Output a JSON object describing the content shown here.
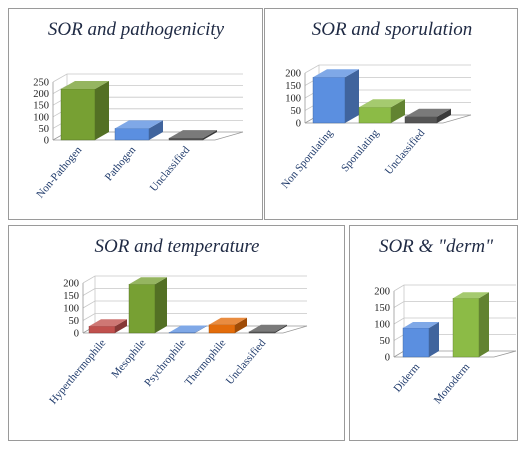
{
  "chart_data": [
    {
      "type": "bar",
      "title": "SOR and pathogenicity",
      "categories": [
        "Non-Pathogen",
        "Pathogen",
        "Unclassified"
      ],
      "values": [
        220,
        50,
        8
      ],
      "colors": [
        "#77a033",
        "#5b8fe0",
        "#555555"
      ],
      "ylim": [
        0,
        250
      ],
      "yticks": [
        0,
        50,
        100,
        150,
        200,
        250
      ],
      "grid": true
    },
    {
      "type": "bar",
      "title": "SOR and sporulation",
      "categories": [
        "Non Sporulating",
        "Sporulating",
        "Unclassified"
      ],
      "values": [
        183,
        63,
        25
      ],
      "colors": [
        "#5b8fe0",
        "#8cbb46",
        "#555555"
      ],
      "ylim": [
        0,
        200
      ],
      "yticks": [
        0,
        50,
        100,
        150,
        200
      ],
      "grid": true
    },
    {
      "type": "bar",
      "title": "SOR and temperature",
      "categories": [
        "Hyperthermophile",
        "Mesophile",
        "Psychrophile",
        "Thermophile",
        "Unclassified"
      ],
      "values": [
        27,
        195,
        2,
        33,
        5
      ],
      "colors": [
        "#c0504d",
        "#77a033",
        "#5b8fe0",
        "#e36c0a",
        "#555555"
      ],
      "ylim": [
        0,
        200
      ],
      "yticks": [
        0,
        50,
        100,
        150,
        200
      ],
      "grid": true
    },
    {
      "type": "bar",
      "title": "SOR & \"derm\"",
      "categories": [
        "Diderm",
        "Monoderm"
      ],
      "values": [
        88,
        178
      ],
      "colors": [
        "#5b8fe0",
        "#8cbb46"
      ],
      "ylim": [
        0,
        200
      ],
      "yticks": [
        0,
        50,
        100,
        150,
        200
      ],
      "grid": true
    }
  ]
}
